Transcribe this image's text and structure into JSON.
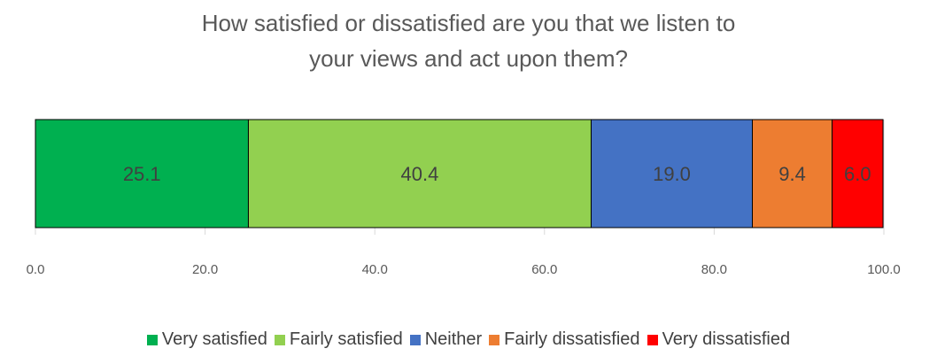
{
  "chart_data": {
    "type": "bar",
    "orientation": "horizontal",
    "stacked": true,
    "title": "How satisfied or dissatisfied are you that we listen to your views and act upon them?",
    "title_lines": [
      "How satisfied or dissatisfied are you that we listen to",
      "your views and act upon them?"
    ],
    "xlim": [
      0,
      100
    ],
    "xticks": [
      "0.0",
      "20.0",
      "40.0",
      "60.0",
      "80.0",
      "100.0"
    ],
    "xtick_values": [
      0,
      20,
      40,
      60,
      80,
      100
    ],
    "grid": true,
    "legend_position": "bottom",
    "series": [
      {
        "name": "Very satisfied",
        "values": [
          25.1
        ],
        "label": "25.1",
        "color": "#00B050"
      },
      {
        "name": "Fairly satisfied",
        "values": [
          40.4
        ],
        "label": "40.4",
        "color": "#92D050"
      },
      {
        "name": "Neither",
        "values": [
          19.0
        ],
        "label": "19.0",
        "color": "#4472C4"
      },
      {
        "name": "Fairly dissatisfied",
        "values": [
          9.4
        ],
        "label": "9.4",
        "color": "#ED7D31"
      },
      {
        "name": "Very dissatisfied",
        "values": [
          6.0
        ],
        "label": "6.0",
        "color": "#FF0000"
      }
    ]
  }
}
